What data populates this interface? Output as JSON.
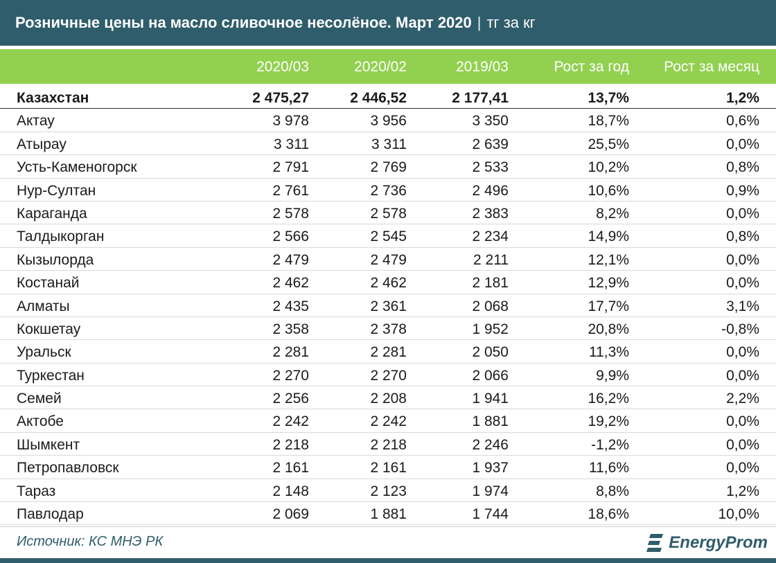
{
  "title": "Розничные цены на масло сливочное несолёное. Март 2020",
  "title_sep": "|",
  "unit": "тг за кг",
  "colors": {
    "header_bg": "#2f5d6b",
    "columns_bg": "#92d050",
    "text": "#1a1a1a"
  },
  "chart_data": {
    "type": "table",
    "title": "Розничные цены на масло сливочное несолёное. Март 2020",
    "unit": "тг за кг",
    "columns": [
      "2020/03",
      "2020/02",
      "2019/03",
      "Рост за год",
      "Рост за месяц"
    ],
    "rows": [
      {
        "name": "Казахстан",
        "v1": "2 475,27",
        "v2": "2 446,52",
        "v3": "2 177,41",
        "yoy": "13,7%",
        "mom": "1,2%"
      },
      {
        "name": "Актау",
        "v1": "3 978",
        "v2": "3 956",
        "v3": "3 350",
        "yoy": "18,7%",
        "mom": "0,6%"
      },
      {
        "name": "Атырау",
        "v1": "3 311",
        "v2": "3 311",
        "v3": "2 639",
        "yoy": "25,5%",
        "mom": "0,0%"
      },
      {
        "name": "Усть-Каменогорск",
        "v1": "2 791",
        "v2": "2 769",
        "v3": "2 533",
        "yoy": "10,2%",
        "mom": "0,8%"
      },
      {
        "name": "Нур-Султан",
        "v1": "2 761",
        "v2": "2 736",
        "v3": "2 496",
        "yoy": "10,6%",
        "mom": "0,9%"
      },
      {
        "name": "Караганда",
        "v1": "2 578",
        "v2": "2 578",
        "v3": "2 383",
        "yoy": "8,2%",
        "mom": "0,0%"
      },
      {
        "name": "Талдыкорган",
        "v1": "2 566",
        "v2": "2 545",
        "v3": "2 234",
        "yoy": "14,9%",
        "mom": "0,8%"
      },
      {
        "name": "Кызылорда",
        "v1": "2 479",
        "v2": "2 479",
        "v3": "2 211",
        "yoy": "12,1%",
        "mom": "0,0%"
      },
      {
        "name": "Костанай",
        "v1": "2 462",
        "v2": "2 462",
        "v3": "2 181",
        "yoy": "12,9%",
        "mom": "0,0%"
      },
      {
        "name": "Алматы",
        "v1": "2 435",
        "v2": "2 361",
        "v3": "2 068",
        "yoy": "17,7%",
        "mom": "3,1%"
      },
      {
        "name": "Кокшетау",
        "v1": "2 358",
        "v2": "2 378",
        "v3": "1 952",
        "yoy": "20,8%",
        "mom": "-0,8%"
      },
      {
        "name": "Уральск",
        "v1": "2 281",
        "v2": "2 281",
        "v3": "2 050",
        "yoy": "11,3%",
        "mom": "0,0%"
      },
      {
        "name": "Туркестан",
        "v1": "2 270",
        "v2": "2 270",
        "v3": "2 066",
        "yoy": "9,9%",
        "mom": "0,0%"
      },
      {
        "name": "Семей",
        "v1": "2 256",
        "v2": "2 208",
        "v3": "1 941",
        "yoy": "16,2%",
        "mom": "2,2%"
      },
      {
        "name": "Актобе",
        "v1": "2 242",
        "v2": "2 242",
        "v3": "1 881",
        "yoy": "19,2%",
        "mom": "0,0%"
      },
      {
        "name": "Шымкент",
        "v1": "2 218",
        "v2": "2 218",
        "v3": "2 246",
        "yoy": "-1,2%",
        "mom": "0,0%"
      },
      {
        "name": "Петропавловск",
        "v1": "2 161",
        "v2": "2 161",
        "v3": "1 937",
        "yoy": "11,6%",
        "mom": "0,0%"
      },
      {
        "name": "Тараз",
        "v1": "2 148",
        "v2": "2 123",
        "v3": "1 974",
        "yoy": "8,8%",
        "mom": "1,2%"
      },
      {
        "name": "Павлодар",
        "v1": "2 069",
        "v2": "1 881",
        "v3": "1 744",
        "yoy": "18,6%",
        "mom": "10,0%"
      }
    ]
  },
  "footer": {
    "source": "Источник: КС МНЭ РК",
    "logo_text": "EnergyProm",
    "logo_icon": "energyprom-logo-icon"
  }
}
